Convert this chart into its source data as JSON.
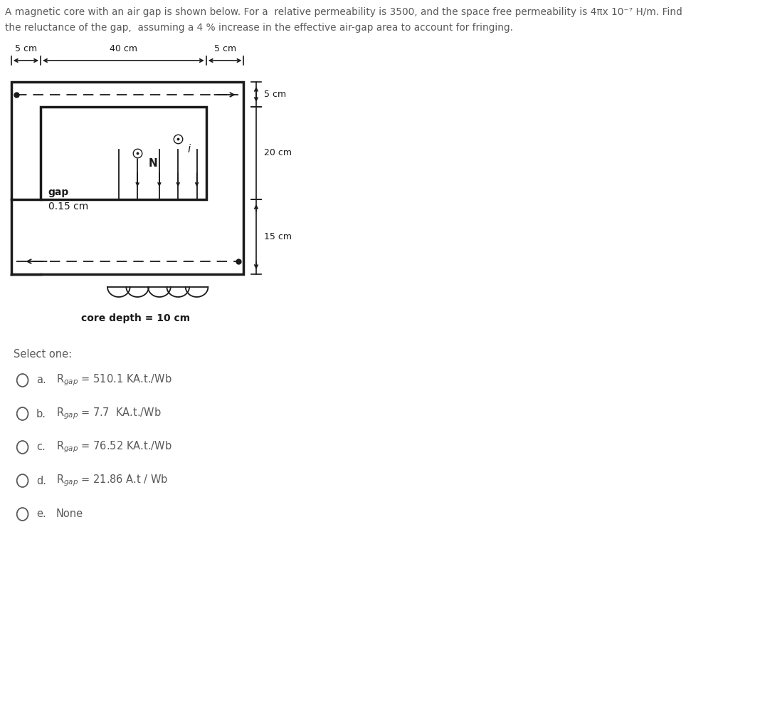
{
  "title_line1": "A magnetic core with an air gap is shown below. For a  relative permeability is 3500, and the space free permeability is 4πx 10⁻⁷ H/m. Find",
  "title_line2": "the reluctance of the gap,  assuming a 4 % increase in the effective air-gap area to account for fringing.",
  "fig_width": 10.68,
  "fig_height": 10.11,
  "bg_color": "#ffffff",
  "text_color": "#5a5a5a",
  "diagram_color": "#1a1a1a",
  "select_one_text": "Select one:",
  "options": [
    {
      "label": "a.",
      "answer": "R$_{gap}$ = 510.1 KA.t./Wb"
    },
    {
      "label": "b.",
      "answer": "R$_{gap}$ = 7.7  KA.t./Wb"
    },
    {
      "label": "c.",
      "answer": "R$_{gap}$ = 76.52 KA.t./Wb"
    },
    {
      "label": "d.",
      "answer": "R$_{gap}$ = 21.86 A.t / Wb"
    },
    {
      "label": "e.",
      "answer": "None"
    }
  ],
  "dim_5cm_left": "5 cm",
  "dim_40cm": "40 cm",
  "dim_5cm_right": "5 cm",
  "dim_5cm_top": "5 cm",
  "dim_20cm": "20 cm",
  "dim_15cm": "15 cm",
  "gap_label": "gap",
  "gap_size_label": "0.15 cm",
  "N_label": "N",
  "i_label": "i",
  "core_depth_label": "core depth = 10 cm"
}
